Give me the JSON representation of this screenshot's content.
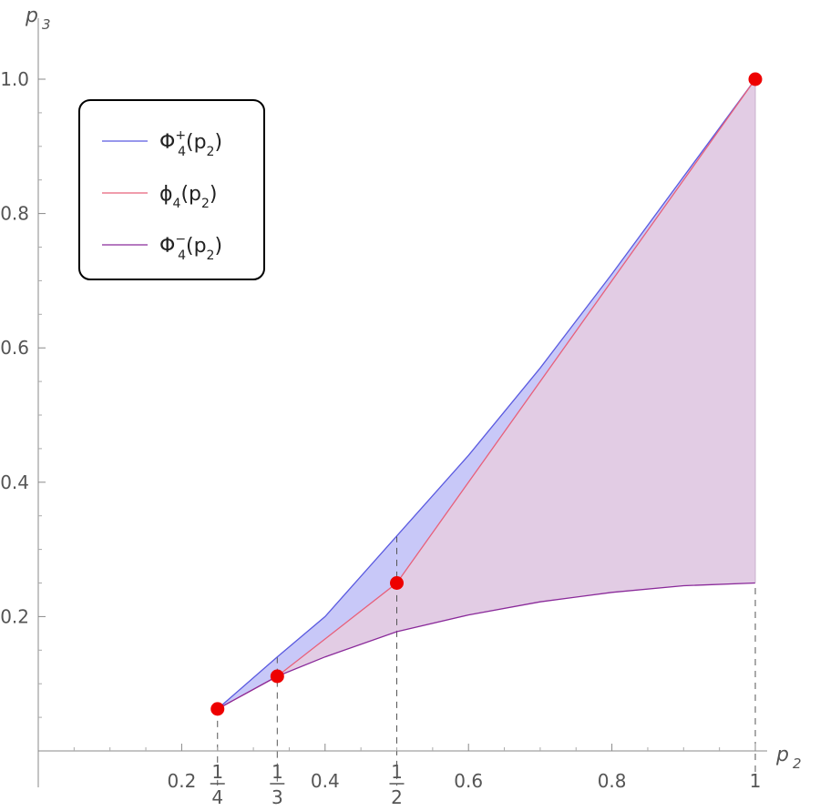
{
  "chart_data": {
    "type": "area",
    "title": "",
    "xlabel": "p",
    "xlabel_sub": "2",
    "ylabel": "p",
    "ylabel_sub": "3",
    "xlim": [
      0.0,
      1.0
    ],
    "ylim": [
      0.0,
      1.0
    ],
    "x_ticks": [
      {
        "value": 0.2,
        "label": "0.2"
      },
      {
        "value": 0.4,
        "label": "0.4"
      },
      {
        "value": 0.6,
        "label": "0.6"
      },
      {
        "value": 0.8,
        "label": "0.8"
      },
      {
        "value": 1.0,
        "label": "1"
      }
    ],
    "x_fraction_ticks": [
      {
        "value": 0.25,
        "num": "1",
        "den": "4"
      },
      {
        "value": 0.3333,
        "num": "1",
        "den": "3"
      },
      {
        "value": 0.5,
        "num": "1",
        "den": "2"
      }
    ],
    "y_ticks": [
      {
        "value": 0.2,
        "label": "0.2"
      },
      {
        "value": 0.4,
        "label": "0.4"
      },
      {
        "value": 0.6,
        "label": "0.6"
      },
      {
        "value": 0.8,
        "label": "0.8"
      },
      {
        "value": 1.0,
        "label": "1.0"
      }
    ],
    "series": [
      {
        "name": "Φ4+(p2)",
        "legend_main": "Φ",
        "legend_sup": "+",
        "legend_sub": "4",
        "legend_arg": "(p",
        "legend_arg_sub": "2",
        "legend_close": ")",
        "color": "#5a5ae0",
        "x": [
          0.25,
          0.3333,
          0.4,
          0.5,
          0.6,
          0.7,
          0.8,
          0.9,
          1.0
        ],
        "y": [
          0.0625,
          0.14,
          0.2,
          0.32,
          0.44,
          0.57,
          0.71,
          0.855,
          1.0
        ]
      },
      {
        "name": "φ4(p2)",
        "legend_main": "ϕ",
        "legend_sup": "",
        "legend_sub": "4",
        "legend_arg": "(p",
        "legend_arg_sub": "2",
        "legend_close": ")",
        "color": "#e8607a",
        "x": [
          0.25,
          0.3333,
          0.5,
          1.0
        ],
        "y": [
          0.0625,
          0.1111,
          0.25,
          1.0
        ]
      },
      {
        "name": "Φ4−(p2)",
        "legend_main": "Φ",
        "legend_sup": "−",
        "legend_sub": "4",
        "legend_arg": "(p",
        "legend_arg_sub": "2",
        "legend_close": ")",
        "color": "#8a2a9a",
        "x": [
          0.25,
          0.3333,
          0.4,
          0.5,
          0.6,
          0.7,
          0.8,
          0.9,
          1.0
        ],
        "y": [
          0.0625,
          0.1111,
          0.14,
          0.1775,
          0.2025,
          0.222,
          0.236,
          0.246,
          0.25
        ]
      }
    ],
    "points": [
      {
        "x": 0.25,
        "y": 0.0625
      },
      {
        "x": 0.3333,
        "y": 0.1111
      },
      {
        "x": 0.5,
        "y": 0.25
      },
      {
        "x": 1.0,
        "y": 1.0
      }
    ],
    "fill_colors": {
      "between_upper_and_phi": "#c8c8f8",
      "between_phi_and_lower": "#e2cce4"
    },
    "point_color": "#ee0000",
    "legend": {
      "position": "top-left"
    },
    "grid": false
  }
}
